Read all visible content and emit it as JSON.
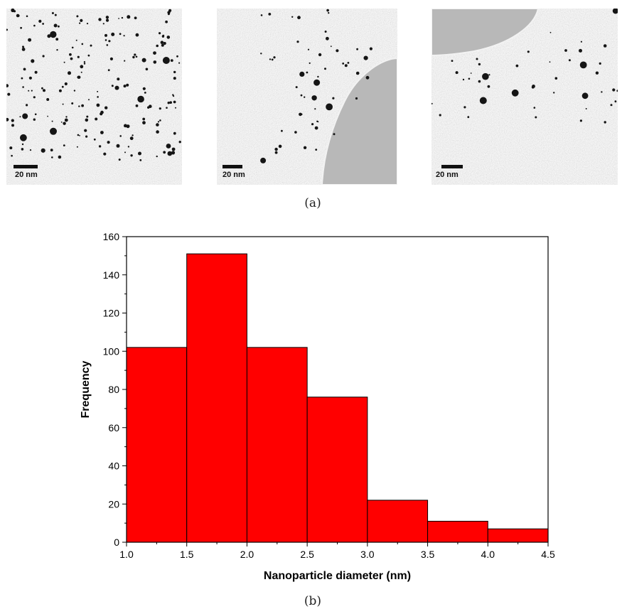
{
  "figure": {
    "panel_a": {
      "caption": "(a)",
      "images": [
        {
          "scale_bar_label": "20 nm",
          "content": "tem-particles-dense"
        },
        {
          "scale_bar_label": "20 nm",
          "content": "tem-particles-with-hole-right"
        },
        {
          "scale_bar_label": "20 nm",
          "content": "tem-particles-with-hole-top"
        }
      ]
    },
    "panel_b": {
      "caption": "(b)"
    }
  },
  "chart_data": {
    "type": "bar",
    "title": "",
    "xlabel": "Nanoparticle diameter (nm)",
    "ylabel": "Frequency",
    "bin_edges": [
      1.0,
      1.5,
      2.0,
      2.5,
      3.0,
      3.5,
      4.0,
      4.5
    ],
    "values": [
      102,
      151,
      102,
      76,
      22,
      11,
      7
    ],
    "xlim": [
      1.0,
      4.5
    ],
    "ylim": [
      0,
      160
    ],
    "x_ticks": [
      "1.0",
      "1.5",
      "2.0",
      "2.5",
      "3.0",
      "3.5",
      "4.0",
      "4.5"
    ],
    "y_ticks": [
      "0",
      "20",
      "40",
      "60",
      "80",
      "100",
      "120",
      "140",
      "160"
    ],
    "bar_color": "#ff0000",
    "grid": false,
    "legend": "none"
  }
}
